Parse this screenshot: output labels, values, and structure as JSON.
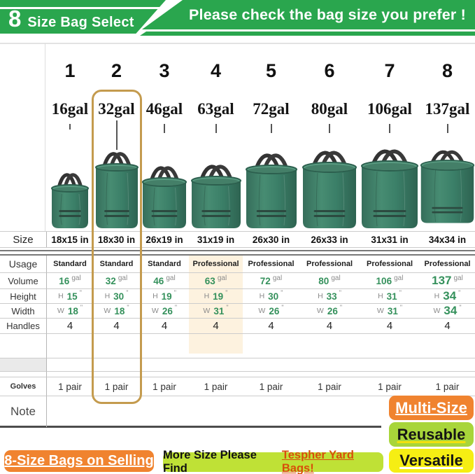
{
  "header": {
    "badge_number": "8",
    "badge_title": "Size Bag Select",
    "banner_title": "Please check the bag size you prefer !"
  },
  "row_labels": {
    "size": "Size",
    "usage": "Usage",
    "volume": "Volume",
    "height": "Height",
    "width": "Width",
    "handles": "Handles",
    "gloves": "Golves",
    "note": "Note"
  },
  "units": {
    "gal": "gal",
    "inch": "\"",
    "height_prefix": "H",
    "width_prefix": "W"
  },
  "columns": [
    {
      "number": "1",
      "capacity": "16gal",
      "size": "18x15 in",
      "usage": "Standard",
      "volume": "16",
      "height": "15",
      "width": "18",
      "handles": "4",
      "gloves": "1 pair"
    },
    {
      "number": "2",
      "capacity": "32gal",
      "size": "18x30 in",
      "usage": "Standard",
      "volume": "32",
      "height": "30",
      "width": "18",
      "handles": "4",
      "gloves": "1 pair"
    },
    {
      "number": "3",
      "capacity": "46gal",
      "size": "26x19 in",
      "usage": "Standard",
      "volume": "46",
      "height": "19",
      "width": "26",
      "handles": "4",
      "gloves": "1 pair"
    },
    {
      "number": "4",
      "capacity": "63gal",
      "size": "31x19 in",
      "usage": "Professional",
      "volume": "63",
      "height": "19",
      "width": "31",
      "handles": "4",
      "gloves": "1 pair"
    },
    {
      "number": "5",
      "capacity": "72gal",
      "size": "26x30 in",
      "usage": "Professional",
      "volume": "72",
      "height": "30",
      "width": "26",
      "handles": "4",
      "gloves": "1 pair"
    },
    {
      "number": "6",
      "capacity": "80gal",
      "size": "26x33 in",
      "usage": "Professional",
      "volume": "80",
      "height": "33",
      "width": "26",
      "handles": "4",
      "gloves": "1 pair"
    },
    {
      "number": "7",
      "capacity": "106gal",
      "size": "31x31 in",
      "usage": "Professional",
      "volume": "106",
      "height": "31",
      "width": "31",
      "handles": "4",
      "gloves": "1 pair"
    },
    {
      "number": "8",
      "capacity": "137gal",
      "size": "34x34 in",
      "usage": "Professional",
      "volume": "137",
      "height": "34",
      "width": "34",
      "handles": "4",
      "gloves": "1 pair"
    }
  ],
  "footer": {
    "selling_badge": "8-Size Bags on Selling",
    "more_size_text": "More Size Please Find",
    "more_size_link": "Tespher Yard Bags!",
    "feature_badges": [
      "Multi-Size",
      "Reusable",
      "Versatile"
    ]
  },
  "colors": {
    "banner_green": "#2aa64e",
    "number_green": "#35915c",
    "highlight_border": "#c49b4e",
    "highlight_fill": "#fdf2df",
    "badge_orange": "#f0832f",
    "badge_lime": "#bfe136",
    "badge_reusable": "#a8d53a",
    "badge_yellow": "#f6ee13",
    "link_orange": "#d84f0a"
  }
}
